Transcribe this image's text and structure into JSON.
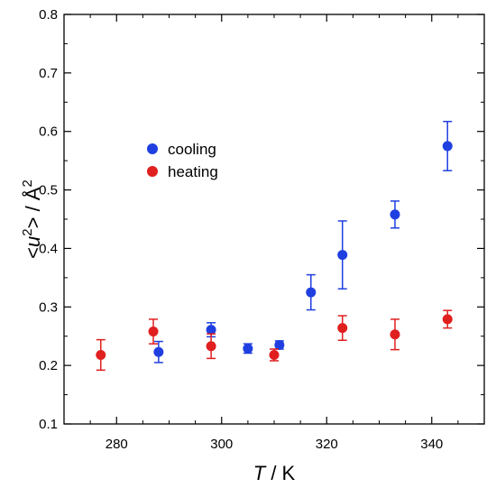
{
  "chart_data": {
    "type": "scatter",
    "xlabel": "T / K",
    "ylabel": "<u2> / Å2",
    "xlim": [
      270,
      350
    ],
    "ylim": [
      0.1,
      0.8
    ],
    "x_ticks": [
      280,
      300,
      320,
      340
    ],
    "y_ticks": [
      0.1,
      0.2,
      0.3,
      0.4,
      0.5,
      0.6,
      0.7,
      0.8
    ],
    "x_tick_labels": [
      "280",
      "300",
      "320",
      "340"
    ],
    "y_tick_labels": [
      "0.1",
      "0.2",
      "0.3",
      "0.4",
      "0.5",
      "0.6",
      "0.7",
      "0.8"
    ],
    "grid": false,
    "legend_position": "upper-left",
    "series": [
      {
        "name": "cooling",
        "color": "#1f3fe0",
        "x": [
          288,
          298,
          305,
          311,
          317,
          323,
          333,
          343
        ],
        "y": [
          0.223,
          0.261,
          0.229,
          0.235,
          0.325,
          0.389,
          0.458,
          0.575
        ],
        "err": [
          0.018,
          0.012,
          0.008,
          0.007,
          0.03,
          0.058,
          0.023,
          0.042
        ]
      },
      {
        "name": "heating",
        "color": "#e01f1f",
        "x": [
          277,
          287,
          298,
          310,
          323,
          333,
          343
        ],
        "y": [
          0.218,
          0.258,
          0.233,
          0.218,
          0.264,
          0.253,
          0.279
        ],
        "err": [
          0.026,
          0.021,
          0.021,
          0.01,
          0.021,
          0.026,
          0.015
        ]
      }
    ]
  }
}
